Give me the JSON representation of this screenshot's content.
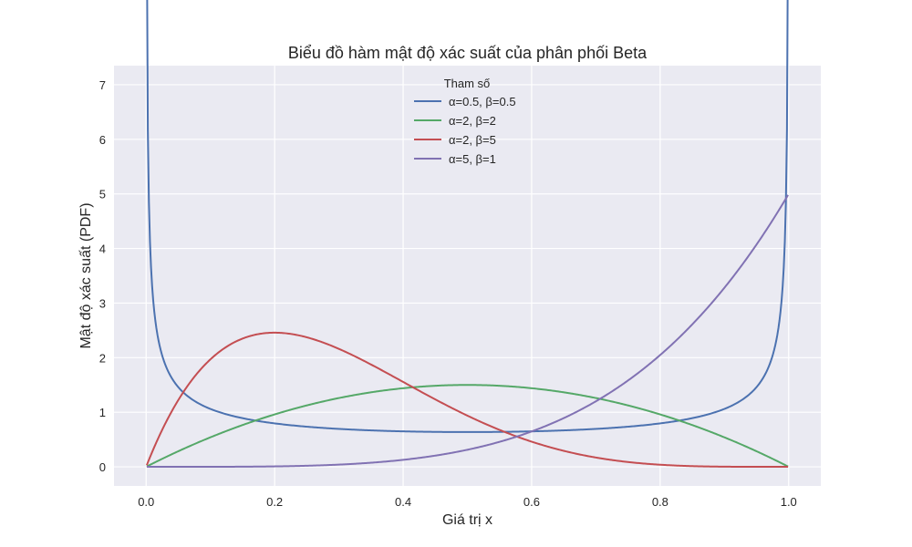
{
  "chart_data": {
    "type": "line",
    "title": "Biểu đồ hàm mật độ xác suất của phân phối Beta",
    "xlabel": "Giá trị x",
    "ylabel": "Mật độ xác suất (PDF)",
    "xlim": [
      -0.05,
      1.05
    ],
    "ylim": [
      -0.35,
      7.35
    ],
    "xticks": [
      0.0,
      0.2,
      0.4,
      0.6,
      0.8,
      1.0
    ],
    "xtick_labels": [
      "0.0",
      "0.2",
      "0.4",
      "0.6",
      "0.8",
      "1.0"
    ],
    "yticks": [
      0,
      1,
      2,
      3,
      4,
      5,
      6,
      7
    ],
    "ytick_labels": [
      "0",
      "1",
      "2",
      "3",
      "4",
      "5",
      "6",
      "7"
    ],
    "grid": true,
    "background": "#eaeaf2",
    "legend": {
      "title": "Tham số",
      "placement": "top-center"
    },
    "x_domain": [
      0.001,
      0.999
    ],
    "series": [
      {
        "name": "α=0.5, β=0.5",
        "alpha": 0.5,
        "beta": 0.5,
        "color": "#4c72b0"
      },
      {
        "name": "α=2, β=2",
        "alpha": 2,
        "beta": 2,
        "color": "#55a868"
      },
      {
        "name": "α=2, β=5",
        "alpha": 2,
        "beta": 5,
        "color": "#c44e52"
      },
      {
        "name": "α=5, β=1",
        "alpha": 5,
        "beta": 1,
        "color": "#8172b3"
      }
    ]
  }
}
